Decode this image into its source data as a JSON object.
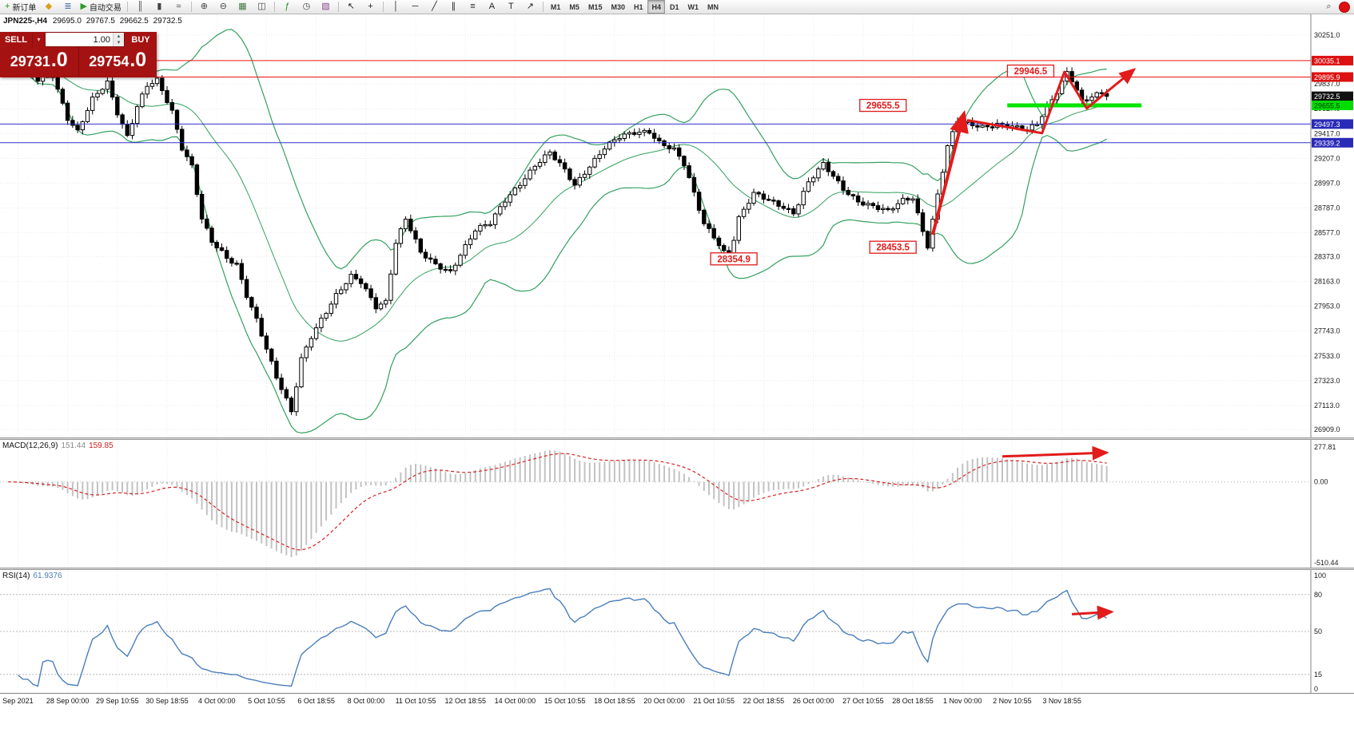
{
  "toolbar": {
    "active_timeframe": "H4",
    "items": [
      {
        "kind": "btn",
        "name": "new-order-button",
        "glyph": "+",
        "glyph_color": "#189618",
        "label": "新订单"
      },
      {
        "kind": "icon",
        "name": "charts-folder-icon",
        "glyph": "◆",
        "glyph_color": "#d8a01c"
      },
      {
        "kind": "icon",
        "name": "market-depth-icon",
        "glyph": "≣",
        "glyph_color": "#5577aa"
      },
      {
        "kind": "btn",
        "name": "algo-trading-button",
        "glyph": "▶",
        "glyph_color": "#2d9e2d",
        "label": "自动交易"
      },
      {
        "kind": "sep",
        "name": "toolbar-separator"
      },
      {
        "kind": "icon",
        "name": "bar-chart-icon",
        "glyph": "║",
        "glyph_color": "#444444"
      },
      {
        "kind": "icon",
        "name": "candlestick-chart-icon",
        "glyph": "▮",
        "glyph_color": "#444444"
      },
      {
        "kind": "icon",
        "name": "line-chart-icon",
        "glyph": "≈",
        "glyph_color": "#444444"
      },
      {
        "kind": "sep",
        "name": "toolbar-separator"
      },
      {
        "kind": "icon",
        "name": "zoom-in-icon",
        "glyph": "⊕",
        "glyph_color": "#444444"
      },
      {
        "kind": "icon",
        "name": "zoom-out-icon",
        "glyph": "⊖",
        "glyph_color": "#444444"
      },
      {
        "kind": "icon",
        "name": "grid-icon",
        "glyph": "▦",
        "glyph_color": "#447744"
      },
      {
        "kind": "icon",
        "name": "tile-windows-icon",
        "glyph": "◫",
        "glyph_color": "#444444"
      },
      {
        "kind": "sep",
        "name": "toolbar-separator"
      },
      {
        "kind": "icon",
        "name": "indicators-icon",
        "glyph": "ƒ",
        "glyph_color": "#189618"
      },
      {
        "kind": "icon",
        "name": "period-icon",
        "glyph": "◷",
        "glyph_color": "#444444"
      },
      {
        "kind": "icon",
        "name": "templates-icon",
        "glyph": "▧",
        "glyph_color": "#884488"
      },
      {
        "kind": "sep",
        "name": "toolbar-separator"
      },
      {
        "kind": "icon",
        "name": "cursor-icon",
        "glyph": "↖",
        "glyph_color": "#222222"
      },
      {
        "kind": "icon",
        "name": "crosshair-icon",
        "glyph": "+",
        "glyph_color": "#222222"
      },
      {
        "kind": "sep",
        "name": "toolbar-separator"
      },
      {
        "kind": "icon",
        "name": "vertical-line-icon",
        "glyph": "│",
        "glyph_color": "#222222"
      },
      {
        "kind": "icon",
        "name": "horizontal-line-icon",
        "glyph": "─",
        "glyph_color": "#222222"
      },
      {
        "kind": "icon",
        "name": "trendline-icon",
        "glyph": "╱",
        "glyph_color": "#222222"
      },
      {
        "kind": "icon",
        "name": "equidistant-channel-icon",
        "glyph": "∥",
        "glyph_color": "#222222"
      },
      {
        "kind": "icon",
        "name": "fibonacci-icon",
        "glyph": "≡",
        "glyph_color": "#222222"
      },
      {
        "kind": "icon",
        "name": "text-icon",
        "glyph": "A",
        "glyph_color": "#222222"
      },
      {
        "kind": "icon",
        "name": "text-label-icon",
        "glyph": "T",
        "glyph_color": "#222222"
      },
      {
        "kind": "icon",
        "name": "arrows-tool-icon",
        "glyph": "↗",
        "glyph_color": "#222222"
      },
      {
        "kind": "sep",
        "name": "toolbar-separator"
      },
      {
        "kind": "tf",
        "name": "timeframe-m1",
        "label": "M1"
      },
      {
        "kind": "tf",
        "name": "timeframe-m5",
        "label": "M5"
      },
      {
        "kind": "tf",
        "name": "timeframe-m15",
        "label": "M15"
      },
      {
        "kind": "tf",
        "name": "timeframe-m30",
        "label": "M30"
      },
      {
        "kind": "tf",
        "name": "timeframe-h1",
        "label": "H1"
      },
      {
        "kind": "tf",
        "name": "timeframe-h4",
        "label": "H4"
      },
      {
        "kind": "tf",
        "name": "timeframe-d1",
        "label": "D1"
      },
      {
        "kind": "tf",
        "name": "timeframe-w1",
        "label": "W1"
      },
      {
        "kind": "tf",
        "name": "timeframe-mn",
        "label": "MN"
      },
      {
        "kind": "spacer",
        "name": "toolbar-spacer"
      },
      {
        "kind": "icon",
        "name": "search-icon",
        "glyph": "⌕",
        "glyph_color": "#444444"
      },
      {
        "kind": "badge",
        "name": "notification-badge"
      }
    ]
  },
  "chart_header": {
    "symbol_period": "JPN225-,H4",
    "open": "29695.0",
    "high": "29767.5",
    "low": "29662.5",
    "close": "29732.5"
  },
  "trade_panel": {
    "sell_label": "SELL",
    "buy_label": "BUY",
    "volume": "1.00",
    "icons": {
      "dropdown": "▾",
      "up": "▴",
      "down": "▾"
    },
    "sell_price": {
      "main": "29731",
      "pips": ".0"
    },
    "buy_price": {
      "main": "29754",
      "pips": ".0"
    }
  },
  "chart_data": {
    "type": "candlestick",
    "symbol": "JPN225-",
    "timeframe": "H4",
    "title": "JPN225-,H4 29695.0 29767.5 29662.5 29732.5",
    "ylim": [
      26836,
      30431
    ],
    "arrow_color": "#e21b1b",
    "price_ticks": [
      30251.0,
      29837.0,
      29627.0,
      29417.0,
      29207.0,
      28997.0,
      28787.0,
      28577.0,
      28373.0,
      28163.0,
      27953.0,
      27743.0,
      27533.0,
      27323.0,
      27113.0,
      26909.0
    ],
    "levels": [
      {
        "price": 30035.1,
        "label": "30035.1",
        "color": "#ee1111",
        "style": "line-full",
        "label_bg": "#dd1111",
        "label_fg": "#ffffff"
      },
      {
        "price": 29895.9,
        "label": "29895.9",
        "color": "#ee1111",
        "style": "line-full",
        "label_bg": "#dd1111",
        "label_fg": "#ffffff"
      },
      {
        "price": 29732.5,
        "label": "29732.5",
        "color": "#111111",
        "style": "label-only",
        "label_bg": "#111111",
        "label_fg": "#ffffff"
      },
      {
        "price": 29655.5,
        "label": "29655.5",
        "color": "#00e400",
        "style": "segment",
        "seg_from_index": 201,
        "seg_to_index": 228,
        "width": 5,
        "label_bg": "#00dd00",
        "label_fg": "#003300"
      },
      {
        "price": 29497.3,
        "label": "29497.3",
        "color": "#3333cc",
        "style": "line-full",
        "label_bg": "#2a2ab8",
        "label_fg": "#ffffff"
      },
      {
        "price": 29339.2,
        "label": "29339.2",
        "color": "#3333cc",
        "style": "line-full",
        "label_bg": "#2a2ab8",
        "label_fg": "#ffffff"
      }
    ],
    "annotations": [
      {
        "text": "29946.5",
        "price": 29946.5,
        "anchor_index": 211,
        "align": "right"
      },
      {
        "text": "29655.5",
        "price": 29655.5,
        "anchor_index": 176,
        "align": "center"
      },
      {
        "text": "28453.5",
        "price": 28453.5,
        "anchor_index": 178,
        "align": "center"
      },
      {
        "text": "28354.9",
        "price": 28354.9,
        "anchor_index": 146,
        "align": "center"
      }
    ],
    "trend_arrows": [
      {
        "points": [
          [
            186,
            28560
          ],
          [
            192.3,
            29590
          ]
        ],
        "width": 4
      },
      {
        "points": [
          [
            193,
            29530
          ],
          [
            208,
            29420
          ],
          [
            212.5,
            29940
          ],
          [
            217,
            29630
          ],
          [
            226.5,
            29960
          ]
        ],
        "width": 3
      }
    ],
    "candles": {
      "count": 222,
      "anchors": [
        [
          0,
          30020
        ],
        [
          3,
          29940
        ],
        [
          6,
          29870
        ],
        [
          9,
          29920
        ],
        [
          12,
          29550
        ],
        [
          14,
          29430
        ],
        [
          17,
          29700
        ],
        [
          20,
          29850
        ],
        [
          22,
          29600
        ],
        [
          24,
          29400
        ],
        [
          26,
          29650
        ],
        [
          28,
          29820
        ],
        [
          30,
          29860
        ],
        [
          33,
          29600
        ],
        [
          35,
          29300
        ],
        [
          37,
          29150
        ],
        [
          39,
          28700
        ],
        [
          41,
          28500
        ],
        [
          44,
          28350
        ],
        [
          46,
          28300
        ],
        [
          48,
          28050
        ],
        [
          50,
          27850
        ],
        [
          52,
          27600
        ],
        [
          54,
          27350
        ],
        [
          56,
          27150
        ],
        [
          57,
          27050
        ],
        [
          59,
          27500
        ],
        [
          61,
          27700
        ],
        [
          63,
          27850
        ],
        [
          66,
          28050
        ],
        [
          69,
          28200
        ],
        [
          71,
          28150
        ],
        [
          74,
          27950
        ],
        [
          76,
          28000
        ],
        [
          78,
          28500
        ],
        [
          80,
          28700
        ],
        [
          83,
          28400
        ],
        [
          86,
          28300
        ],
        [
          89,
          28250
        ],
        [
          91,
          28400
        ],
        [
          94,
          28600
        ],
        [
          97,
          28650
        ],
        [
          100,
          28850
        ],
        [
          103,
          29000
        ],
        [
          106,
          29150
        ],
        [
          109,
          29250
        ],
        [
          112,
          29100
        ],
        [
          114,
          28980
        ],
        [
          117,
          29150
        ],
        [
          120,
          29300
        ],
        [
          123,
          29380
        ],
        [
          126,
          29420
        ],
        [
          129,
          29440
        ],
        [
          131,
          29350
        ],
        [
          134,
          29280
        ],
        [
          136,
          29150
        ],
        [
          138,
          28900
        ],
        [
          140,
          28650
        ],
        [
          142,
          28550
        ],
        [
          144,
          28420
        ],
        [
          145,
          28360
        ],
        [
          147,
          28700
        ],
        [
          150,
          28900
        ],
        [
          153,
          28850
        ],
        [
          156,
          28800
        ],
        [
          158,
          28750
        ],
        [
          161,
          29000
        ],
        [
          164,
          29150
        ],
        [
          166,
          29050
        ],
        [
          168,
          28950
        ],
        [
          171,
          28850
        ],
        [
          174,
          28800
        ],
        [
          177,
          28750
        ],
        [
          180,
          28850
        ],
        [
          182,
          28880
        ],
        [
          184,
          28600
        ],
        [
          185,
          28470
        ],
        [
          187,
          28900
        ],
        [
          189,
          29300
        ],
        [
          191,
          29520
        ],
        [
          193,
          29500
        ],
        [
          196,
          29480
        ],
        [
          199,
          29500
        ],
        [
          202,
          29470
        ],
        [
          205,
          29440
        ],
        [
          207,
          29500
        ],
        [
          209,
          29650
        ],
        [
          211,
          29780
        ],
        [
          213,
          29940
        ],
        [
          214,
          29870
        ],
        [
          216,
          29680
        ],
        [
          218,
          29720
        ],
        [
          220,
          29760
        ],
        [
          221,
          29733
        ]
      ]
    },
    "bollinger": {
      "period": 20,
      "deviation": 2,
      "color": "#33a05f"
    },
    "time_labels": [
      "Sep 2021",
      "28 Sep 00:00",
      "29 Sep 10:55",
      "30 Sep 18:55",
      "4 Oct 00:00",
      "5 Oct 10:55",
      "6 Oct 18:55",
      "8 Oct 00:00",
      "11 Oct 10:55",
      "12 Oct 18:55",
      "14 Oct 00:00",
      "15 Oct 10:55",
      "18 Oct 18:55",
      "20 Oct 00:00",
      "21 Oct 10:55",
      "22 Oct 18:55",
      "26 Oct 00:00",
      "27 Oct 10:55",
      "28 Oct 18:55",
      "1 Nov 00:00",
      "2 Nov 10:55",
      "3 Nov 18:55"
    ],
    "macd": {
      "label": "MACD(12,26,9)",
      "main_value": "151.44",
      "signal_value": "159.85",
      "axis_max": "277.81",
      "axis_zero": "0.00",
      "axis_min": "-510.44",
      "fast": 12,
      "slow": 26,
      "signal": 9,
      "histogram_color": "#c2c2c2",
      "signal_color": "#d42424",
      "arrow": {
        "points_index_frac": [
          [
            200,
            0.13
          ],
          [
            221,
            0.1
          ]
        ]
      }
    },
    "rsi": {
      "label": "RSI(14)",
      "value": "61.9376",
      "period": 14,
      "levels": [
        100,
        80,
        50,
        15,
        0
      ],
      "color": "#4a7ebb",
      "arrow": {
        "points_index_frac": [
          [
            214,
            0.36
          ],
          [
            222,
            0.34
          ]
        ]
      }
    }
  }
}
